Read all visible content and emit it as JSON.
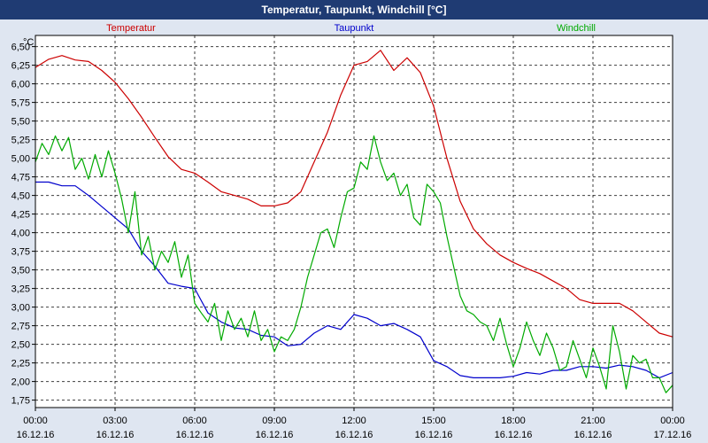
{
  "header": {
    "title": "Temperatur, Taupunkt, Windchill [°C]"
  },
  "chart_data": {
    "type": "line",
    "title": "Temperatur, Taupunkt, Windchill [°C]",
    "unit_label": "°C",
    "grid": true,
    "xlim": [
      0,
      24
    ],
    "ylim": [
      1.65,
      6.65
    ],
    "x_ticks": [
      0,
      3,
      6,
      9,
      12,
      15,
      18,
      21,
      24
    ],
    "x_tick_labels": [
      "00:00",
      "03:00",
      "06:00",
      "09:00",
      "12:00",
      "15:00",
      "18:00",
      "21:00",
      "00:00"
    ],
    "x_tick_dates": [
      "16.12.16",
      "16.12.16",
      "16.12.16",
      "16.12.16",
      "16.12.16",
      "16.12.16",
      "16.12.16",
      "16.12.16",
      "17.12.16"
    ],
    "y_ticks": [
      1.75,
      2.0,
      2.25,
      2.5,
      2.75,
      3.0,
      3.25,
      3.5,
      3.75,
      4.0,
      4.25,
      4.5,
      4.75,
      5.0,
      5.25,
      5.5,
      5.75,
      6.0,
      6.25,
      6.5
    ],
    "y_tick_labels": [
      "1,75",
      "2,00",
      "2,25",
      "2,50",
      "2,75",
      "3,00",
      "3,25",
      "3,50",
      "3,75",
      "4,00",
      "4,25",
      "4,50",
      "4,75",
      "5,00",
      "5,25",
      "5,50",
      "5,75",
      "6,00",
      "6,25",
      "6,50"
    ],
    "series": [
      {
        "name": "Temperatur",
        "color": "#cc0000",
        "legend_position": "left",
        "x": [
          0,
          0.5,
          1,
          1.5,
          2,
          2.5,
          3,
          3.5,
          4,
          4.5,
          5,
          5.5,
          6,
          6.5,
          7,
          7.5,
          8,
          8.5,
          9,
          9.5,
          10,
          10.5,
          11,
          11.5,
          12,
          12.5,
          13,
          13.5,
          14,
          14.5,
          15,
          15.5,
          16,
          16.5,
          17,
          17.5,
          18,
          18.5,
          19,
          19.5,
          20,
          20.5,
          21,
          21.5,
          22,
          22.5,
          23,
          23.5,
          24
        ],
        "y": [
          6.22,
          6.33,
          6.38,
          6.32,
          6.3,
          6.18,
          6.02,
          5.8,
          5.55,
          5.28,
          5.02,
          4.85,
          4.8,
          4.68,
          4.55,
          4.5,
          4.45,
          4.36,
          4.36,
          4.4,
          4.55,
          4.95,
          5.35,
          5.85,
          6.25,
          6.3,
          6.45,
          6.18,
          6.35,
          6.15,
          5.7,
          5.0,
          4.42,
          4.05,
          3.85,
          3.7,
          3.6,
          3.52,
          3.45,
          3.35,
          3.25,
          3.1,
          3.05,
          3.05,
          3.05,
          2.95,
          2.8,
          2.65,
          2.6
        ]
      },
      {
        "name": "Taupunkt",
        "color": "#0000cc",
        "legend_position": "center",
        "x": [
          0,
          0.5,
          1,
          1.5,
          2,
          2.5,
          3,
          3.5,
          4,
          4.5,
          5,
          5.5,
          6,
          6.5,
          7,
          7.5,
          8,
          8.5,
          9,
          9.5,
          10,
          10.5,
          11,
          11.5,
          12,
          12.5,
          13,
          13.5,
          14,
          14.5,
          15,
          15.5,
          16,
          16.5,
          17,
          17.5,
          18,
          18.5,
          19,
          19.5,
          20,
          20.5,
          21,
          21.5,
          22,
          22.5,
          23,
          23.5,
          24
        ],
        "y": [
          4.68,
          4.68,
          4.63,
          4.63,
          4.5,
          4.35,
          4.2,
          4.05,
          3.75,
          3.55,
          3.32,
          3.28,
          3.25,
          2.92,
          2.8,
          2.72,
          2.7,
          2.62,
          2.6,
          2.48,
          2.5,
          2.65,
          2.75,
          2.7,
          2.9,
          2.85,
          2.75,
          2.78,
          2.7,
          2.6,
          2.28,
          2.2,
          2.08,
          2.05,
          2.05,
          2.05,
          2.07,
          2.12,
          2.1,
          2.15,
          2.15,
          2.2,
          2.2,
          2.18,
          2.22,
          2.2,
          2.15,
          2.05,
          2.12
        ]
      },
      {
        "name": "Windchill",
        "color": "#00aa00",
        "legend_position": "right",
        "x": [
          0,
          0.25,
          0.5,
          0.75,
          1,
          1.25,
          1.5,
          1.75,
          2,
          2.25,
          2.5,
          2.75,
          3,
          3.25,
          3.5,
          3.75,
          4,
          4.25,
          4.5,
          4.75,
          5,
          5.25,
          5.5,
          5.75,
          6,
          6.25,
          6.5,
          6.75,
          7,
          7.25,
          7.5,
          7.75,
          8,
          8.25,
          8.5,
          8.75,
          9,
          9.25,
          9.5,
          9.75,
          10,
          10.25,
          10.5,
          10.75,
          11,
          11.25,
          11.5,
          11.75,
          12,
          12.25,
          12.5,
          12.75,
          13,
          13.25,
          13.5,
          13.75,
          14,
          14.25,
          14.5,
          14.75,
          15,
          15.25,
          15.5,
          15.75,
          16,
          16.25,
          16.5,
          16.75,
          17,
          17.25,
          17.5,
          17.75,
          18,
          18.25,
          18.5,
          18.75,
          19,
          19.25,
          19.5,
          19.75,
          20,
          20.25,
          20.5,
          20.75,
          21,
          21.25,
          21.5,
          21.75,
          22,
          22.25,
          22.5,
          22.75,
          23,
          23.25,
          23.5,
          23.75,
          24
        ],
        "y": [
          4.95,
          5.2,
          5.05,
          5.3,
          5.1,
          5.28,
          4.85,
          5.0,
          4.72,
          5.05,
          4.75,
          5.1,
          4.8,
          4.45,
          4.0,
          4.55,
          3.7,
          3.95,
          3.5,
          3.75,
          3.6,
          3.88,
          3.4,
          3.7,
          3.05,
          2.92,
          2.8,
          3.05,
          2.55,
          2.95,
          2.7,
          2.85,
          2.6,
          2.95,
          2.55,
          2.7,
          2.4,
          2.6,
          2.55,
          2.7,
          3.0,
          3.4,
          3.7,
          4.0,
          4.05,
          3.8,
          4.2,
          4.55,
          4.6,
          4.95,
          4.85,
          5.3,
          4.95,
          4.7,
          4.8,
          4.5,
          4.65,
          4.2,
          4.1,
          4.65,
          4.55,
          4.4,
          3.95,
          3.55,
          3.15,
          2.95,
          2.9,
          2.8,
          2.75,
          2.55,
          2.85,
          2.5,
          2.2,
          2.45,
          2.8,
          2.55,
          2.35,
          2.65,
          2.45,
          2.15,
          2.2,
          2.55,
          2.3,
          2.05,
          2.45,
          2.2,
          1.9,
          2.75,
          2.4,
          1.9,
          2.35,
          2.25,
          2.3,
          2.05,
          2.05,
          1.85,
          1.95
        ]
      }
    ]
  }
}
